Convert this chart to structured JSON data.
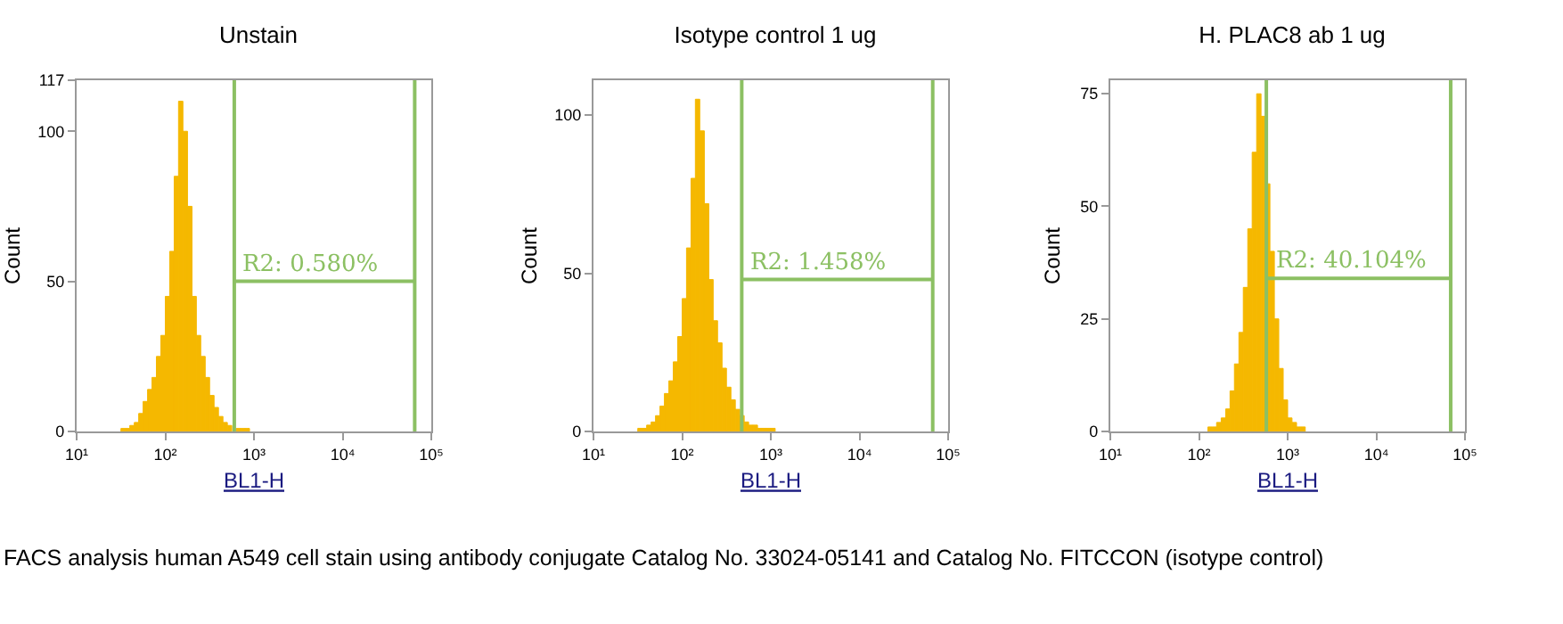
{
  "chart_data": [
    {
      "type": "histogram",
      "title": "Unstain",
      "xlabel": "BL1-H",
      "ylabel": "Count",
      "log": "x",
      "color": "#f5b800",
      "bins": [
        31.6,
        35.5,
        39.8,
        44.7,
        50.1,
        56.2,
        63.1,
        70.8,
        79.4,
        89.1,
        100,
        112,
        126,
        141,
        158,
        178,
        200,
        224,
        251,
        282,
        316,
        355,
        398,
        447,
        501,
        562,
        631,
        708,
        794,
        891
      ],
      "values": [
        1,
        1,
        2,
        3,
        6,
        10,
        14,
        18,
        25,
        32,
        45,
        60,
        85,
        110,
        100,
        75,
        45,
        32,
        25,
        18,
        12,
        8,
        5,
        3,
        2,
        null,
        1,
        1,
        1
      ],
      "xlim": [
        10,
        100000
      ],
      "xticks": [
        {
          "value": 10,
          "label": "10¹"
        },
        {
          "value": 100,
          "label": "10²"
        },
        {
          "value": 1000,
          "label": "10³"
        },
        {
          "value": 10000,
          "label": "10⁴"
        },
        {
          "value": 100000,
          "label": "10⁵"
        }
      ],
      "ylim": [
        0,
        117
      ],
      "yticks": [
        0,
        50,
        100,
        117
      ],
      "ref_lines": [
        {
          "axis": "x",
          "value": 600,
          "color": "#8cc063"
        },
        {
          "axis": "x",
          "value": 65000,
          "color": "#8cc063"
        }
      ],
      "annotations": [
        {
          "text": "R2: 0.580%",
          "x": 600,
          "y": 50
        }
      ]
    },
    {
      "type": "histogram",
      "title": "Isotype control 1 ug",
      "xlabel": "BL1-H",
      "ylabel": "Count",
      "log": "x",
      "color": "#f5b800",
      "bins": [
        31.6,
        35.5,
        39.8,
        44.7,
        50.1,
        56.2,
        63.1,
        70.8,
        79.4,
        89.1,
        100,
        112,
        126,
        141,
        158,
        178,
        200,
        224,
        251,
        282,
        316,
        355,
        398,
        447,
        501,
        562,
        631,
        708,
        794,
        891,
        1000,
        1120
      ],
      "values": [
        1,
        1,
        2,
        3,
        5,
        8,
        12,
        16,
        22,
        30,
        42,
        58,
        80,
        105,
        95,
        72,
        48,
        35,
        28,
        20,
        14,
        10,
        7,
        5,
        3,
        2,
        2,
        1,
        1,
        1,
        1
      ],
      "xlim": [
        10,
        100000
      ],
      "xticks": [
        {
          "value": 10,
          "label": "10¹"
        },
        {
          "value": 100,
          "label": "10²"
        },
        {
          "value": 1000,
          "label": "10³"
        },
        {
          "value": 10000,
          "label": "10⁴"
        },
        {
          "value": 100000,
          "label": "10⁵"
        }
      ],
      "ylim": [
        0,
        111
      ],
      "yticks": [
        0,
        50,
        100
      ],
      "ref_lines": [
        {
          "axis": "x",
          "value": 470,
          "color": "#8cc063"
        },
        {
          "axis": "x",
          "value": 67000,
          "color": "#8cc063"
        }
      ],
      "annotations": [
        {
          "text": "R2: 1.458%",
          "x": 470,
          "y": 48
        }
      ]
    },
    {
      "type": "histogram",
      "title": "H. PLAC8 ab 1 ug",
      "xlabel": "BL1-H",
      "ylabel": "Count",
      "log": "x",
      "color": "#f5b800",
      "bins": [
        126,
        141,
        158,
        178,
        200,
        224,
        251,
        282,
        316,
        355,
        398,
        447,
        501,
        562,
        631,
        708,
        794,
        891,
        1000,
        1120,
        1260,
        1410,
        1580
      ],
      "values": [
        1,
        1,
        2,
        3,
        5,
        9,
        15,
        22,
        32,
        45,
        62,
        75,
        70,
        55,
        40,
        25,
        14,
        7,
        3,
        2,
        1,
        1
      ],
      "xlim": [
        10,
        100000
      ],
      "xticks": [
        {
          "value": 10,
          "label": "10¹"
        },
        {
          "value": 100,
          "label": "10²"
        },
        {
          "value": 1000,
          "label": "10³"
        },
        {
          "value": 10000,
          "label": "10⁴"
        },
        {
          "value": 100000,
          "label": "10⁵"
        }
      ],
      "ylim": [
        0,
        78
      ],
      "yticks": [
        0,
        25,
        50,
        75
      ],
      "ref_lines": [
        {
          "axis": "x",
          "value": 575,
          "color": "#8cc063"
        },
        {
          "axis": "x",
          "value": 69000,
          "color": "#8cc063"
        }
      ],
      "annotations": [
        {
          "text": "R2: 40.104%",
          "x": 575,
          "y": 34
        },
        "FACS analysis human A549 cell stain using antibody conjugate Catalog No. 33024-05141 and Catalog No. FITCCON (isotype control)"
      ]
    }
  ]
}
